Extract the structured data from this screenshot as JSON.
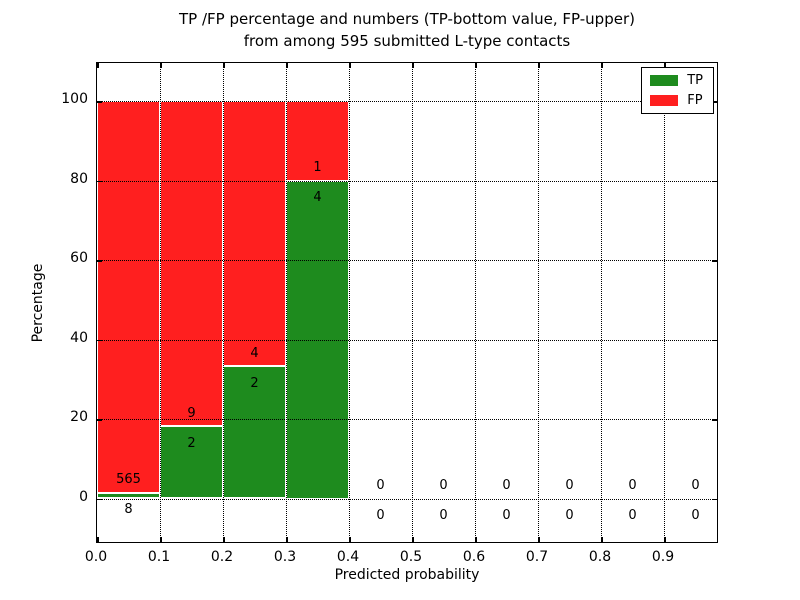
{
  "figure": {
    "title_line1": "TP /FP percentage and numbers (TP-bottom value, FP-upper)",
    "title_line2": "from among 595 submitted L-type contacts",
    "xlabel": "Predicted probability",
    "ylabel": "Percentage"
  },
  "colors": {
    "tp": "#1e8b1e",
    "fp": "#ff1f1f",
    "axis": "#000000",
    "background": "#ffffff"
  },
  "legend": {
    "position": "upper right",
    "items": [
      {
        "label": "TP",
        "color": "#1e8b1e"
      },
      {
        "label": "FP",
        "color": "#ff1f1f"
      }
    ]
  },
  "chart_data": {
    "type": "bar",
    "stacked": true,
    "title": "TP /FP percentage and numbers (TP-bottom value, FP-upper) from among 595 submitted L-type contacts",
    "xlabel": "Predicted probability",
    "ylabel": "Percentage",
    "total_submitted": 595,
    "bins": [
      "0.0-0.1",
      "0.1-0.2",
      "0.2-0.3",
      "0.3-0.4",
      "0.4-0.5",
      "0.5-0.6",
      "0.6-0.7",
      "0.7-0.8",
      "0.8-0.9",
      "0.9-1.0"
    ],
    "bin_centers": [
      0.05,
      0.15,
      0.25,
      0.35,
      0.45,
      0.55,
      0.65,
      0.75,
      0.85,
      0.95
    ],
    "bin_width": 0.1,
    "series": [
      {
        "name": "TP",
        "counts": [
          8,
          2,
          2,
          4,
          0,
          0,
          0,
          0,
          0,
          0
        ],
        "percent": [
          1.4,
          18.2,
          33.3,
          80.0,
          0,
          0,
          0,
          0,
          0,
          0
        ]
      },
      {
        "name": "FP",
        "counts": [
          565,
          9,
          4,
          1,
          0,
          0,
          0,
          0,
          0,
          0
        ],
        "percent": [
          98.6,
          81.8,
          66.7,
          20.0,
          0,
          0,
          0,
          0,
          0,
          0
        ]
      }
    ],
    "x_ticks": [
      "0.0",
      "0.1",
      "0.2",
      "0.3",
      "0.4",
      "0.5",
      "0.6",
      "0.7",
      "0.8",
      "0.9"
    ],
    "y_ticks": [
      0,
      20,
      40,
      60,
      80,
      100
    ],
    "xlim": [
      0.0,
      1.0
    ],
    "ylim": [
      -12,
      110
    ],
    "grid": true,
    "grid_style": "dotted",
    "legend_position": "upper right"
  }
}
